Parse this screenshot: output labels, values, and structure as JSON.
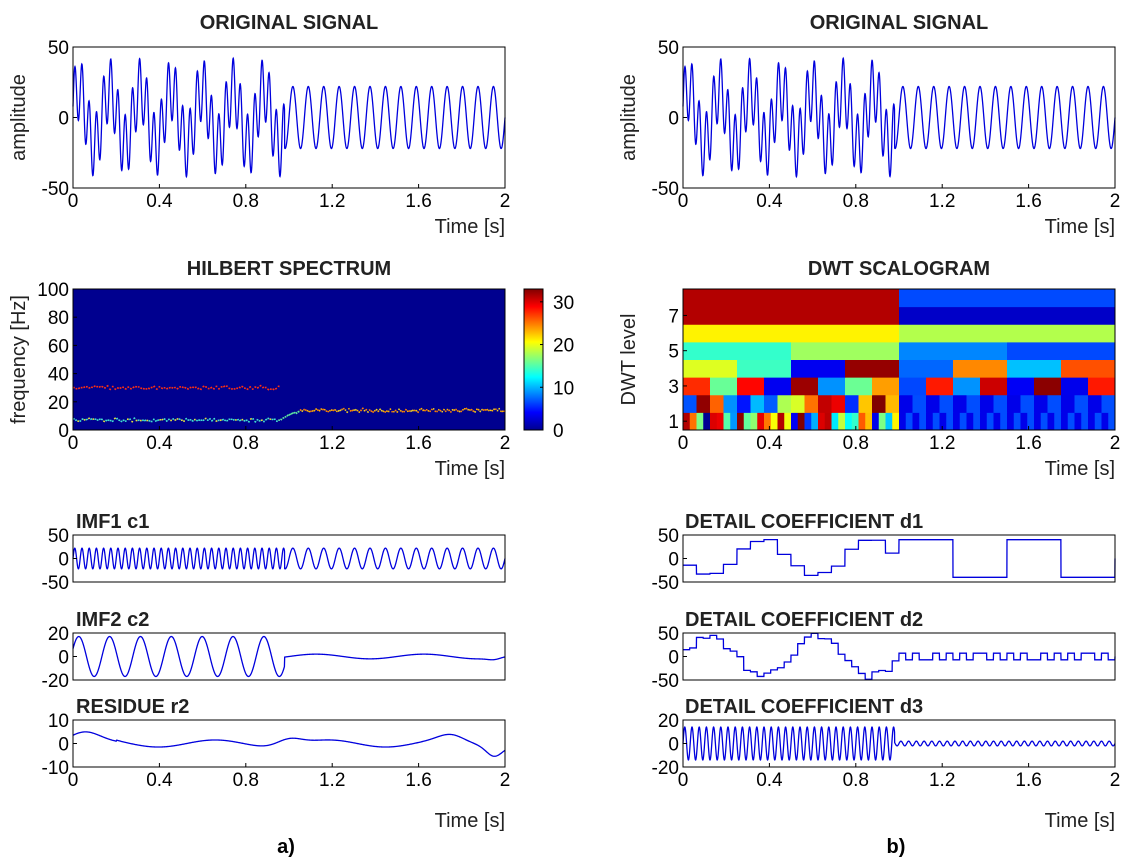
{
  "figure": {
    "panel_labels": [
      "a)",
      "b)"
    ],
    "time_label": "Time [s]"
  },
  "chart_data": [
    {
      "id": "a_original",
      "type": "line",
      "title": "ORIGINAL SIGNAL",
      "xlabel": "Time [s]",
      "ylabel": "amplitude",
      "xlim": [
        0,
        2
      ],
      "ylim": [
        -50,
        50
      ],
      "xticks": [
        "0",
        "0.4",
        "0.8",
        "1.2",
        "1.6",
        "2"
      ],
      "yticks": [
        "50",
        "0",
        "-50"
      ],
      "signal": {
        "first_part": {
          "t_end": 0.98,
          "components": [
            {
              "freq_hz": 30,
              "amp": 22
            },
            {
              "freq_hz": 7,
              "amp": 20
            }
          ]
        },
        "second_part": {
          "freq_hz": 14,
          "amp": 22
        }
      },
      "color": "#0000dd"
    },
    {
      "id": "a_hilbert",
      "type": "heatmap",
      "title": "HILBERT SPECTRUM",
      "xlabel": "Time [s]",
      "ylabel": "frequency [Hz]",
      "xlim": [
        0,
        2
      ],
      "ylim": [
        0,
        100
      ],
      "xticks": [
        "0",
        "0.4",
        "0.8",
        "1.2",
        "1.6",
        "2"
      ],
      "yticks": [
        "100",
        "80",
        "60",
        "40",
        "20",
        "0"
      ],
      "colorbar": {
        "range": [
          0,
          33
        ],
        "ticks": [
          "30",
          "20",
          "10",
          "0"
        ]
      },
      "ridges": [
        {
          "t": [
            0,
            0.95
          ],
          "freq_hz": 30,
          "intensity": 30
        },
        {
          "t": [
            0,
            0.95
          ],
          "freq_hz": 7,
          "intensity": 14
        },
        {
          "t": [
            1.05,
            2.0
          ],
          "freq_hz": 14,
          "intensity": 24
        }
      ],
      "background_color": "#00008f"
    },
    {
      "id": "a_imf1",
      "type": "line",
      "title": "IMF1 c1",
      "xlim": [
        0,
        2
      ],
      "ylim": [
        -50,
        50
      ],
      "yticks": [
        "50",
        "0",
        "-50"
      ],
      "signal": {
        "first_part": {
          "t_end": 0.98,
          "freq_hz": 30,
          "amp": 22
        },
        "second_part": {
          "freq_hz": 14,
          "amp": 22
        }
      },
      "color": "#0000dd"
    },
    {
      "id": "a_imf2",
      "type": "line",
      "title": "IMF2 c2",
      "xlim": [
        0,
        2
      ],
      "ylim": [
        -20,
        20
      ],
      "yticks": [
        "20",
        "0",
        "-20"
      ],
      "signal": {
        "first_part": {
          "t_end": 0.98,
          "freq_hz": 7,
          "amp": 17
        },
        "second_part": {
          "freq_hz": 2,
          "amp": 2
        }
      },
      "color": "#0000dd"
    },
    {
      "id": "a_residue",
      "type": "line",
      "title": "RESIDUE r2",
      "xlabel": "Time [s]",
      "xlim": [
        0,
        2
      ],
      "ylim": [
        -10,
        10
      ],
      "xticks": [
        "0",
        "0.4",
        "0.8",
        "1.2",
        "1.6",
        "2"
      ],
      "yticks": [
        "10",
        "0",
        "-10"
      ],
      "color": "#0000dd"
    },
    {
      "id": "b_original",
      "type": "line",
      "title": "ORIGINAL SIGNAL",
      "xlabel": "Time [s]",
      "ylabel": "amplitude",
      "xlim": [
        0,
        2
      ],
      "ylim": [
        -50,
        50
      ],
      "xticks": [
        "0",
        "0.4",
        "0.8",
        "1.2",
        "1.6",
        "2"
      ],
      "yticks": [
        "50",
        "0",
        "-50"
      ],
      "color": "#0000dd"
    },
    {
      "id": "b_scalogram",
      "type": "heatmap",
      "title": "DWT SCALOGRAM",
      "xlabel": "Time [s]",
      "ylabel": "DWT level",
      "xlim": [
        0,
        2
      ],
      "levels": 8,
      "xticks": [
        "0",
        "0.4",
        "0.8",
        "1.2",
        "1.6",
        "2"
      ],
      "yticks": [
        "7",
        "5",
        "3",
        "1"
      ]
    },
    {
      "id": "b_d1",
      "type": "line",
      "title": "DETAIL COEFFICIENT d1",
      "xlim": [
        0,
        2
      ],
      "ylim": [
        -50,
        50
      ],
      "yticks": [
        "50",
        "0",
        "-50"
      ],
      "color": "#0000dd"
    },
    {
      "id": "b_d2",
      "type": "line",
      "title": "DETAIL COEFFICIENT d2",
      "xlim": [
        0,
        2
      ],
      "ylim": [
        -50,
        50
      ],
      "yticks": [
        "50",
        "0",
        "-50"
      ],
      "color": "#0000dd"
    },
    {
      "id": "b_d3",
      "type": "line",
      "title": "DETAIL COEFFICIENT d3",
      "xlabel": "Time [s]",
      "xlim": [
        0,
        2
      ],
      "ylim": [
        -20,
        20
      ],
      "xticks": [
        "0",
        "0.4",
        "0.8",
        "1.2",
        "1.6",
        "2"
      ],
      "yticks": [
        "20",
        "0",
        "-20"
      ],
      "color": "#0000dd"
    }
  ]
}
